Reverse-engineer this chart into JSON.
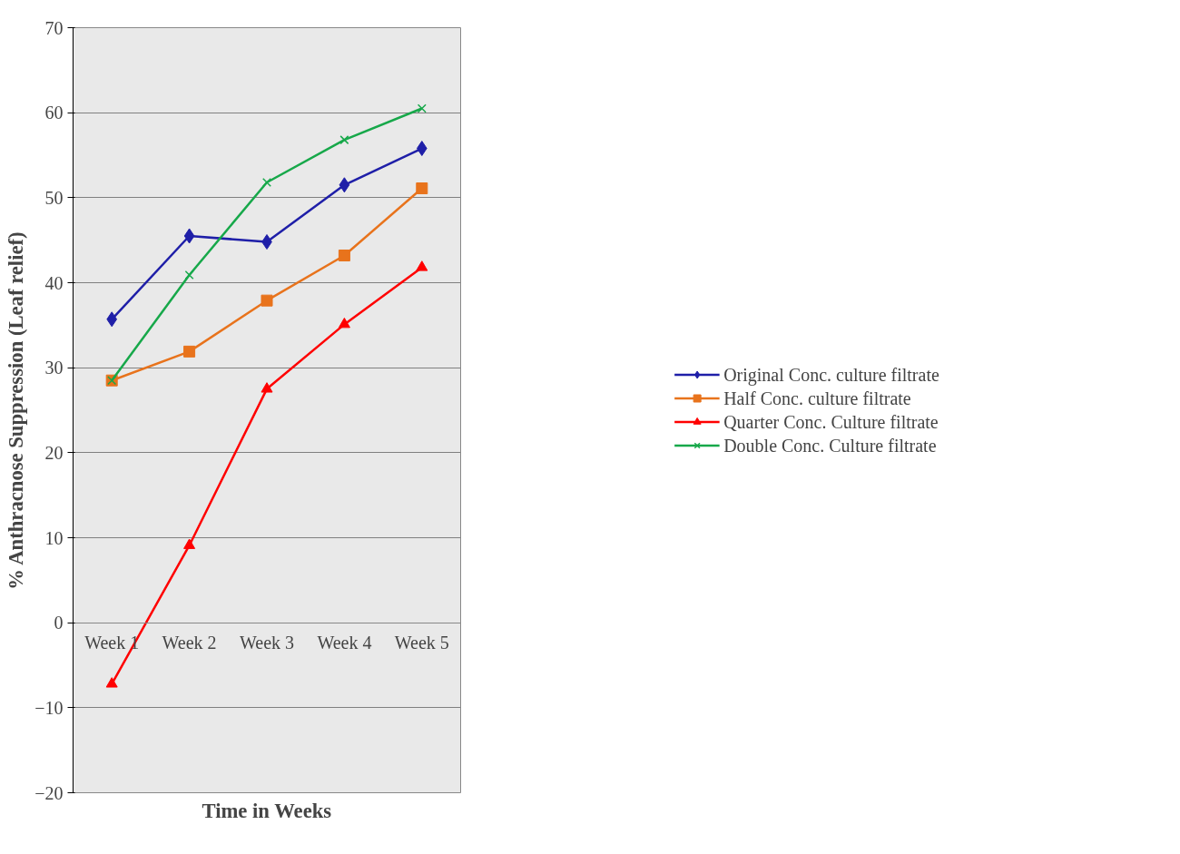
{
  "chart_data": {
    "type": "line",
    "xlabel": "Time in Weeks",
    "ylabel": "% Anthracnose Suppression (Leaf relief)",
    "categories": [
      "Week 1",
      "Week 2",
      "Week 3",
      "Week 4",
      "Week 5"
    ],
    "series": [
      {
        "name": "Original Conc. culture filtrate",
        "color": "#1f1fa8",
        "marker": "diamond",
        "values": [
          35.7,
          45.5,
          44.8,
          51.5,
          55.8
        ]
      },
      {
        "name": "Half Conc. culture filtrate",
        "color": "#e8731c",
        "marker": "square",
        "values": [
          28.5,
          31.9,
          37.9,
          43.2,
          51.1
        ]
      },
      {
        "name": "Quarter Conc. Culture filtrate",
        "color": "#ff0000",
        "marker": "triangle",
        "values": [
          -7.2,
          9.1,
          27.5,
          35.1,
          41.8
        ]
      },
      {
        "name": "Double Conc. Culture filtrate",
        "color": "#17a84a",
        "marker": "cross",
        "values": [
          28.5,
          40.9,
          51.8,
          56.8,
          60.5
        ]
      }
    ],
    "ylim": [
      -20,
      70
    ],
    "yticks": [
      -20,
      -10,
      0,
      10,
      20,
      30,
      40,
      50,
      60,
      70
    ],
    "grid": "y",
    "legend": "right",
    "line_style": "solid"
  }
}
